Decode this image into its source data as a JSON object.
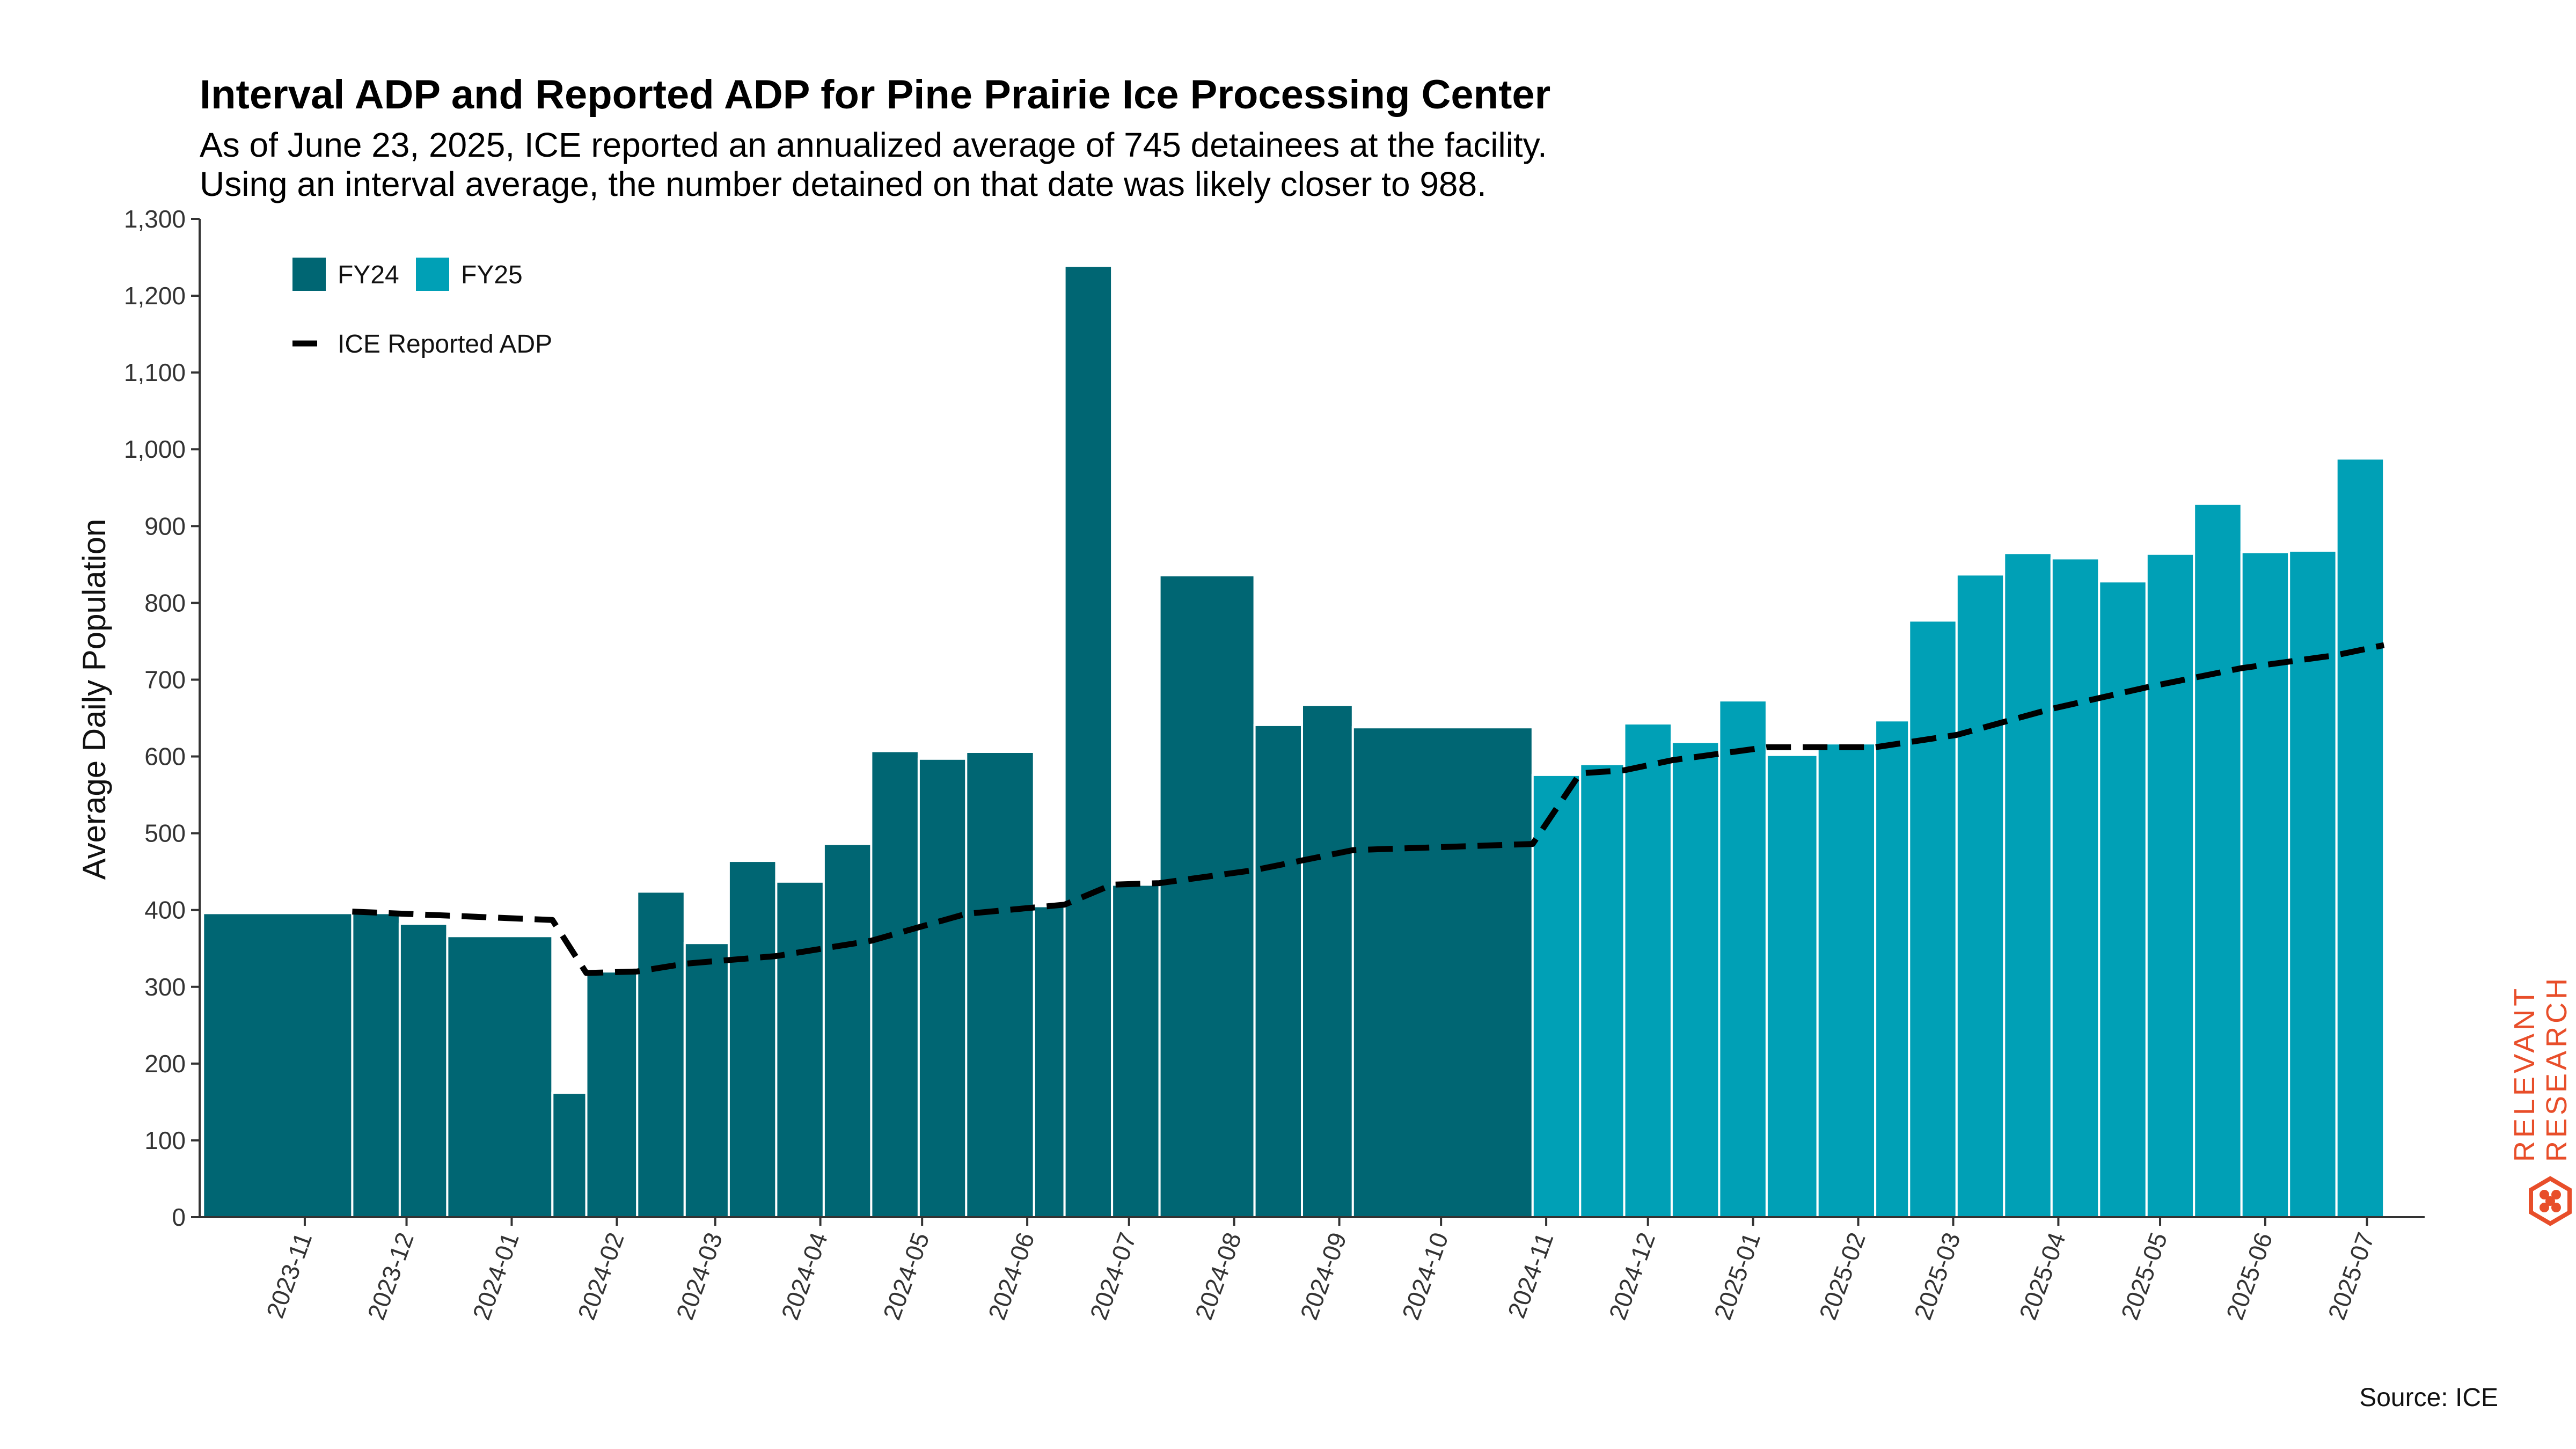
{
  "chart_data": {
    "type": "bar",
    "title": "Interval ADP and Reported ADP for Pine Prairie Ice Processing Center",
    "subtitle_lines": [
      "As of June 23, 2025, ICE reported an annualized average of 745 detainees at the facility.",
      "Using an interval average, the number detained on that date was likely closer to 988."
    ],
    "ylabel": "Average Daily Population",
    "xlabel": "",
    "ylim": [
      0,
      1300
    ],
    "yticks": [
      0,
      100,
      200,
      300,
      400,
      500,
      600,
      700,
      800,
      900,
      1000,
      1100,
      1200,
      1300
    ],
    "ytick_labels": [
      "0",
      "100",
      "200",
      "300",
      "400",
      "500",
      "600",
      "700",
      "800",
      "900",
      "1,000",
      "1,100",
      "1,200",
      "1,300"
    ],
    "xlim": [
      "2023-10-01",
      "2025-07-18"
    ],
    "xticks": [
      "2023-11-01",
      "2023-12-01",
      "2024-01-01",
      "2024-02-01",
      "2024-03-01",
      "2024-04-01",
      "2024-05-01",
      "2024-06-01",
      "2024-07-01",
      "2024-08-01",
      "2024-09-01",
      "2024-10-01",
      "2024-11-01",
      "2024-12-01",
      "2025-01-01",
      "2025-02-01",
      "2025-03-01",
      "2025-04-01",
      "2025-05-01",
      "2025-06-01",
      "2025-07-01"
    ],
    "xtick_labels": [
      "2023-11",
      "2023-12",
      "2024-01",
      "2024-02",
      "2024-03",
      "2024-04",
      "2024-05",
      "2024-06",
      "2024-07",
      "2024-08",
      "2024-09",
      "2024-10",
      "2024-11",
      "2024-12",
      "2025-01",
      "2025-02",
      "2025-03",
      "2025-04",
      "2025-05",
      "2025-06",
      "2025-07"
    ],
    "legend": [
      {
        "name": "FY24",
        "color": "#006673",
        "kind": "bar"
      },
      {
        "name": "FY25",
        "color": "#00a0b6",
        "kind": "bar"
      },
      {
        "name": "ICE Reported ADP",
        "color": "#000000",
        "kind": "dashed-line"
      }
    ],
    "legend_position": "top-left",
    "grid": false,
    "series": [
      {
        "name": "FY24",
        "color": "#006673",
        "bars": [
          {
            "start": "2023-10-02",
            "end": "2023-11-15",
            "value": 396
          },
          {
            "start": "2023-11-15",
            "end": "2023-11-29",
            "value": 396
          },
          {
            "start": "2023-11-29",
            "end": "2023-12-13",
            "value": 382
          },
          {
            "start": "2023-12-13",
            "end": "2024-01-13",
            "value": 366
          },
          {
            "start": "2024-01-13",
            "end": "2024-01-23",
            "value": 162
          },
          {
            "start": "2024-01-23",
            "end": "2024-02-07",
            "value": 320
          },
          {
            "start": "2024-02-07",
            "end": "2024-02-21",
            "value": 424
          },
          {
            "start": "2024-02-21",
            "end": "2024-03-05",
            "value": 357
          },
          {
            "start": "2024-03-05",
            "end": "2024-03-19",
            "value": 464
          },
          {
            "start": "2024-03-19",
            "end": "2024-04-02",
            "value": 437
          },
          {
            "start": "2024-04-02",
            "end": "2024-04-16",
            "value": 486
          },
          {
            "start": "2024-04-16",
            "end": "2024-04-30",
            "value": 607
          },
          {
            "start": "2024-04-30",
            "end": "2024-05-14",
            "value": 597
          },
          {
            "start": "2024-05-14",
            "end": "2024-06-03",
            "value": 606
          },
          {
            "start": "2024-06-03",
            "end": "2024-06-12",
            "value": 405
          },
          {
            "start": "2024-06-12",
            "end": "2024-06-26",
            "value": 1239
          },
          {
            "start": "2024-06-26",
            "end": "2024-07-10",
            "value": 433
          },
          {
            "start": "2024-07-10",
            "end": "2024-08-07",
            "value": 836
          },
          {
            "start": "2024-08-07",
            "end": "2024-08-21",
            "value": 641
          },
          {
            "start": "2024-08-21",
            "end": "2024-09-05",
            "value": 667
          },
          {
            "start": "2024-09-05",
            "end": "2024-10-28",
            "value": 638
          }
        ]
      },
      {
        "name": "FY25",
        "color": "#00a0b6",
        "bars": [
          {
            "start": "2024-10-28",
            "end": "2024-11-11",
            "value": 576
          },
          {
            "start": "2024-11-11",
            "end": "2024-11-24",
            "value": 590
          },
          {
            "start": "2024-11-24",
            "end": "2024-12-08",
            "value": 643
          },
          {
            "start": "2024-12-08",
            "end": "2024-12-22",
            "value": 619
          },
          {
            "start": "2024-12-22",
            "end": "2025-01-05",
            "value": 673
          },
          {
            "start": "2025-01-05",
            "end": "2025-01-20",
            "value": 602
          },
          {
            "start": "2025-01-20",
            "end": "2025-02-06",
            "value": 617
          },
          {
            "start": "2025-02-06",
            "end": "2025-02-16",
            "value": 647
          },
          {
            "start": "2025-02-16",
            "end": "2025-03-02",
            "value": 777
          },
          {
            "start": "2025-03-02",
            "end": "2025-03-16",
            "value": 837
          },
          {
            "start": "2025-03-16",
            "end": "2025-03-30",
            "value": 865
          },
          {
            "start": "2025-03-30",
            "end": "2025-04-13",
            "value": 858
          },
          {
            "start": "2025-04-13",
            "end": "2025-04-27",
            "value": 828
          },
          {
            "start": "2025-04-27",
            "end": "2025-05-11",
            "value": 864
          },
          {
            "start": "2025-05-11",
            "end": "2025-05-25",
            "value": 929
          },
          {
            "start": "2025-05-25",
            "end": "2025-06-08",
            "value": 866
          },
          {
            "start": "2025-06-08",
            "end": "2025-06-22",
            "value": 868
          },
          {
            "start": "2025-06-22",
            "end": "2025-07-06",
            "value": 988
          }
        ]
      },
      {
        "name": "ICE Reported ADP",
        "type": "line",
        "style": "dashed",
        "color": "#000000",
        "points": [
          {
            "x": "2023-11-15",
            "y": 398
          },
          {
            "x": "2024-01-13",
            "y": 387
          },
          {
            "x": "2024-01-23",
            "y": 318
          },
          {
            "x": "2024-02-07",
            "y": 320
          },
          {
            "x": "2024-02-21",
            "y": 330
          },
          {
            "x": "2024-03-19",
            "y": 340
          },
          {
            "x": "2024-04-16",
            "y": 360
          },
          {
            "x": "2024-05-14",
            "y": 395
          },
          {
            "x": "2024-06-12",
            "y": 407
          },
          {
            "x": "2024-06-26",
            "y": 433
          },
          {
            "x": "2024-07-10",
            "y": 435
          },
          {
            "x": "2024-08-07",
            "y": 452
          },
          {
            "x": "2024-09-05",
            "y": 478
          },
          {
            "x": "2024-10-28",
            "y": 486
          },
          {
            "x": "2024-11-11",
            "y": 578
          },
          {
            "x": "2024-11-24",
            "y": 582
          },
          {
            "x": "2024-12-08",
            "y": 595
          },
          {
            "x": "2025-01-05",
            "y": 612
          },
          {
            "x": "2025-02-06",
            "y": 612
          },
          {
            "x": "2025-03-02",
            "y": 628
          },
          {
            "x": "2025-03-30",
            "y": 662
          },
          {
            "x": "2025-04-27",
            "y": 690
          },
          {
            "x": "2025-05-25",
            "y": 715
          },
          {
            "x": "2025-06-22",
            "y": 732
          },
          {
            "x": "2025-07-06",
            "y": 745
          }
        ]
      }
    ]
  },
  "source_text": "Source: ICE",
  "branding": {
    "line1": "RELEVANT",
    "line2": "RESEARCH",
    "color": "#e84e2a",
    "icon": "hexagon-logo-icon"
  }
}
